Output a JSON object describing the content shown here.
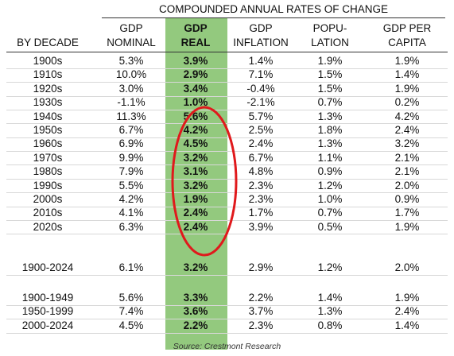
{
  "table": {
    "group_header": "COMPOUNDED ANNUAL RATES OF CHANGE",
    "columns": [
      [
        "BY DECADE"
      ],
      [
        "GDP",
        "NOMINAL"
      ],
      [
        "GDP",
        "REAL"
      ],
      [
        "GDP",
        "INFLATION"
      ],
      [
        "POPU-",
        "LATION"
      ],
      [
        "GDP PER",
        "CAPITA"
      ]
    ],
    "sections": [
      {
        "rows": [
          [
            "1900s",
            "5.3%",
            "3.9%",
            "1.4%",
            "1.9%",
            "1.9%"
          ],
          [
            "1910s",
            "10.0%",
            "2.9%",
            "7.1%",
            "1.5%",
            "1.4%"
          ],
          [
            "1920s",
            "3.0%",
            "3.4%",
            "-0.4%",
            "1.5%",
            "1.9%"
          ],
          [
            "1930s",
            "-1.1%",
            "1.0%",
            "-2.1%",
            "0.7%",
            "0.2%"
          ],
          [
            "1940s",
            "11.3%",
            "5.6%",
            "5.7%",
            "1.3%",
            "4.2%"
          ],
          [
            "1950s",
            "6.7%",
            "4.2%",
            "2.5%",
            "1.8%",
            "2.4%"
          ],
          [
            "1960s",
            "6.9%",
            "4.5%",
            "2.4%",
            "1.3%",
            "3.2%"
          ],
          [
            "1970s",
            "9.9%",
            "3.2%",
            "6.7%",
            "1.1%",
            "2.1%"
          ],
          [
            "1980s",
            "7.9%",
            "3.1%",
            "4.8%",
            "0.9%",
            "2.1%"
          ],
          [
            "1990s",
            "5.5%",
            "3.2%",
            "2.3%",
            "1.2%",
            "2.0%"
          ],
          [
            "2000s",
            "4.2%",
            "1.9%",
            "2.3%",
            "1.0%",
            "0.9%"
          ],
          [
            "2010s",
            "4.1%",
            "2.4%",
            "1.7%",
            "0.7%",
            "1.7%"
          ],
          [
            "2020s",
            "6.3%",
            "2.4%",
            "3.9%",
            "0.5%",
            "1.9%"
          ]
        ]
      },
      {
        "rows": [
          [
            "1900-2024",
            "6.1%",
            "3.2%",
            "2.9%",
            "1.2%",
            "2.0%"
          ]
        ]
      },
      {
        "rows": [
          [
            "1900-1949",
            "5.6%",
            "3.3%",
            "2.2%",
            "1.4%",
            "1.9%"
          ],
          [
            "1950-1999",
            "7.4%",
            "3.6%",
            "3.7%",
            "1.3%",
            "2.4%"
          ],
          [
            "2000-2024",
            "4.5%",
            "2.2%",
            "2.3%",
            "0.8%",
            "1.4%"
          ]
        ]
      }
    ],
    "source": "Source: Crestmont Research"
  }
}
